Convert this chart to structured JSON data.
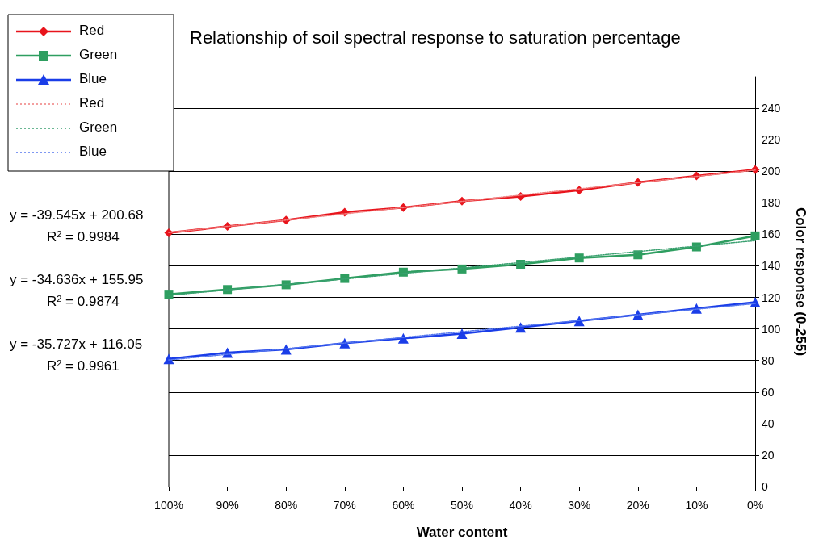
{
  "chart_data": {
    "type": "line",
    "title": "Relationship of soil spectral response to saturation percentage",
    "xlabel": "Water content",
    "ylabel": "Color response (0-255)",
    "categories": [
      "100%",
      "90%",
      "80%",
      "70%",
      "60%",
      "50%",
      "40%",
      "30%",
      "20%",
      "10%",
      "0%"
    ],
    "series": [
      {
        "name": "Red",
        "color": "#e8141c",
        "marker": "diamond",
        "line_style": "solid",
        "values": [
          161,
          165,
          169,
          174,
          177,
          181,
          184,
          188,
          193,
          197,
          201
        ]
      },
      {
        "name": "Green",
        "color": "#2e9e60",
        "marker": "square",
        "line_style": "solid",
        "values": [
          122,
          125,
          128,
          132,
          136,
          138,
          141,
          145,
          147,
          152,
          159
        ]
      },
      {
        "name": "Blue",
        "color": "#1a3de8",
        "marker": "triangle",
        "line_style": "solid",
        "values": [
          81,
          85,
          87,
          91,
          94,
          97,
          101,
          105,
          109,
          113,
          117
        ]
      },
      {
        "name": "Red",
        "color": "#f08080",
        "marker": "none",
        "line_style": "dotted",
        "values": [
          161.1,
          null,
          null,
          null,
          null,
          null,
          null,
          null,
          null,
          null,
          200.7
        ]
      },
      {
        "name": "Green",
        "color": "#3aa070",
        "marker": "none",
        "line_style": "dotted",
        "values": [
          121.3,
          null,
          null,
          null,
          null,
          null,
          null,
          null,
          null,
          null,
          156.0
        ]
      },
      {
        "name": "Blue",
        "color": "#5577ee",
        "marker": "none",
        "line_style": "dotted",
        "values": [
          80.3,
          null,
          null,
          null,
          null,
          null,
          null,
          null,
          null,
          null,
          116.1
        ]
      }
    ],
    "annotations": [
      "y = -39.545x + 200.68",
      "R$^{2}$ = 0.9984",
      "y = -34.636x + 155.95",
      "R$^{2}$ = 0.9874",
      "y = -35.727x + 116.05",
      "R$^{2}$ = 0.9961"
    ],
    "ylim": [
      0,
      260
    ],
    "yticks": [
      0,
      20,
      40,
      60,
      80,
      100,
      120,
      140,
      160,
      180,
      200,
      220,
      240
    ],
    "grid": "y",
    "legend": "top left"
  }
}
